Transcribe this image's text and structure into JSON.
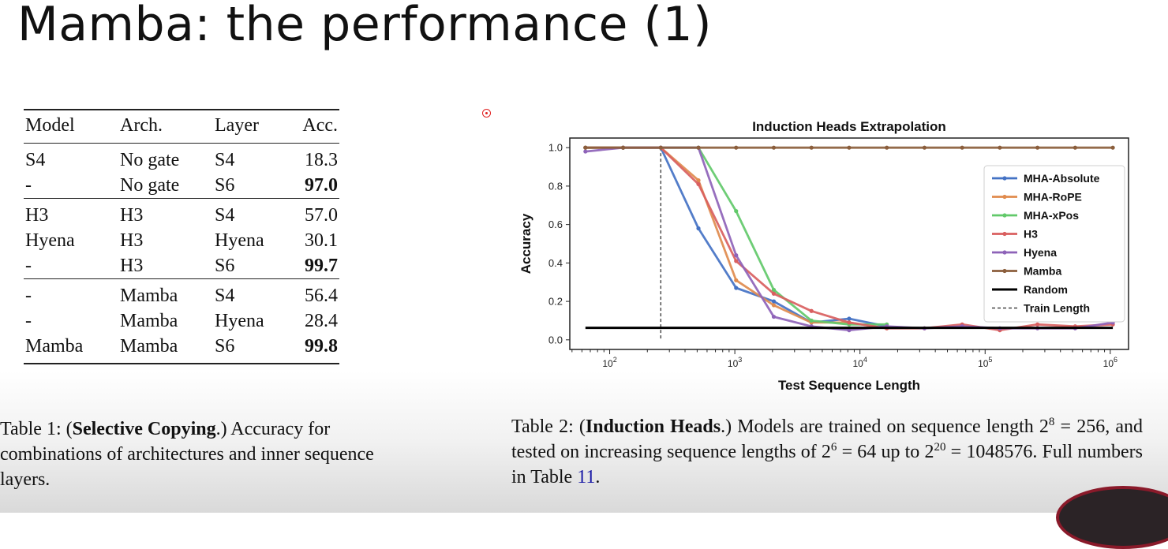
{
  "slide": {
    "title": "Mamba: the performance (1)"
  },
  "table1": {
    "headers": [
      "Model",
      "Arch.",
      "Layer",
      "Acc."
    ],
    "groups": [
      [
        [
          "S4",
          "No gate",
          "S4",
          "18.3"
        ],
        [
          "-",
          "No gate",
          "S6",
          "97.0"
        ]
      ],
      [
        [
          "H3",
          "H3",
          "S4",
          "57.0"
        ],
        [
          "Hyena",
          "H3",
          "Hyena",
          "30.1"
        ],
        [
          "-",
          "H3",
          "S6",
          "99.7"
        ]
      ],
      [
        [
          "-",
          "Mamba",
          "S4",
          "56.4"
        ],
        [
          "-",
          "Mamba",
          "Hyena",
          "28.4"
        ],
        [
          "Mamba",
          "Mamba",
          "S6",
          "99.8"
        ]
      ]
    ],
    "bold_accuracies": [
      "97.0",
      "99.7",
      "99.8"
    ],
    "caption": {
      "prefix": "Table 1: (",
      "bold": "Selective Copying",
      "suffix": ".) Accuracy for combinations of architectures and inner sequence layers."
    }
  },
  "table2_caption": {
    "prefix": "Table 2: (",
    "bold": "Induction Heads",
    "text1": ".) Models are trained on sequence length 2",
    "sup1": "8",
    "text2": " = 256, and tested on increasing sequence lengths of 2",
    "sup2": "6",
    "text3": " = 64 up to 2",
    "sup3": "20",
    "text4": " = 1048576. Full numbers in Table ",
    "ref": "11",
    "text5": "."
  },
  "chart_data": {
    "type": "line",
    "title": "Induction Heads Extrapolation",
    "xlabel": "Test Sequence Length",
    "ylabel": "Accuracy",
    "xscale": "log2",
    "x": [
      64,
      128,
      256,
      512,
      1024,
      2048,
      4096,
      8192,
      16384,
      32768,
      65536,
      131072,
      262144,
      524288,
      1048576
    ],
    "xlim": [
      48,
      1400000
    ],
    "ylim": [
      -0.05,
      1.05
    ],
    "yticks": [
      "0.0",
      "0.2",
      "0.4",
      "0.6",
      "0.8",
      "1.0"
    ],
    "xticks": [
      {
        "base": "10",
        "exp": "2"
      },
      {
        "base": "10",
        "exp": "3"
      },
      {
        "base": "10",
        "exp": "4"
      },
      {
        "base": "10",
        "exp": "5"
      },
      {
        "base": "10",
        "exp": "6"
      }
    ],
    "legend_position": "right",
    "series": [
      {
        "name": "MHA-Absolute",
        "color": "#4472c4",
        "values": [
          1.0,
          1.0,
          1.0,
          0.58,
          0.27,
          0.2,
          0.09,
          0.11,
          0.07,
          null,
          null,
          null,
          null,
          null,
          null
        ]
      },
      {
        "name": "MHA-RoPE",
        "color": "#e08b4e",
        "values": [
          1.0,
          1.0,
          1.0,
          0.83,
          0.31,
          0.18,
          0.09,
          0.09,
          0.06,
          null,
          null,
          null,
          null,
          null,
          null
        ]
      },
      {
        "name": "MHA-xPos",
        "color": "#62c96a",
        "values": [
          1.0,
          1.0,
          1.0,
          1.0,
          0.67,
          0.26,
          0.1,
          0.08,
          0.08,
          null,
          null,
          null,
          null,
          null,
          null
        ]
      },
      {
        "name": "H3",
        "color": "#d95f5f",
        "values": [
          1.0,
          1.0,
          1.0,
          0.81,
          0.41,
          0.24,
          0.15,
          0.09,
          0.06,
          0.06,
          0.08,
          0.05,
          0.08,
          0.07,
          0.08
        ]
      },
      {
        "name": "Hyena",
        "color": "#8e63b8",
        "values": [
          0.98,
          1.0,
          1.0,
          1.0,
          0.44,
          0.12,
          0.07,
          0.05,
          0.07,
          0.06,
          0.07,
          0.06,
          0.06,
          0.06,
          0.09
        ]
      },
      {
        "name": "Mamba",
        "color": "#8b5e3c",
        "values": [
          1.0,
          1.0,
          1.0,
          1.0,
          1.0,
          1.0,
          1.0,
          1.0,
          1.0,
          1.0,
          1.0,
          1.0,
          1.0,
          1.0,
          1.0
        ]
      },
      {
        "name": "Random",
        "color": "#000000",
        "values": [
          0.0625,
          0.0625,
          0.0625,
          0.0625,
          0.0625,
          0.0625,
          0.0625,
          0.0625,
          0.0625,
          0.0625,
          0.0625,
          0.0625,
          0.0625,
          0.0625,
          0.0625
        ]
      }
    ],
    "train_length": {
      "name": "Train Length",
      "x": 256
    }
  }
}
